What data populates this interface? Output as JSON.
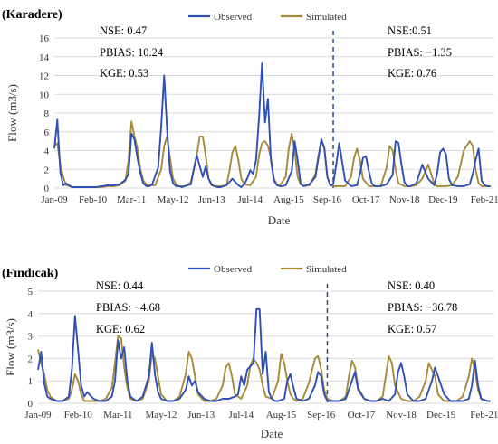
{
  "colors": {
    "observed": "#2e4fb3",
    "simulated": "#a68a3a",
    "grid": "#d9d9d9",
    "divider": "#2b4a8a"
  },
  "chart_data": [
    {
      "type": "line",
      "title": "(Karadere)",
      "xlabel": "Date",
      "ylabel": "Flow (m3/s)",
      "ylim": [
        0,
        16
      ],
      "yticks": [
        0,
        2,
        4,
        6,
        8,
        10,
        12,
        14,
        16
      ],
      "xlim": [
        0,
        148
      ],
      "xtick_labels": [
        "Jan-09",
        "Feb-10",
        "Mar-11",
        "May-12",
        "Jun-13",
        "Jul-14",
        "Aug-15",
        "Sep-16",
        "Oct-17",
        "Nov-18",
        "Dec-19",
        "Feb-21"
      ],
      "xtick_pos": [
        0,
        13,
        26,
        40,
        53,
        66,
        79,
        92,
        105,
        118,
        131,
        145
      ],
      "grid": true,
      "legend": "top",
      "calibration_end_x": 94,
      "stats_left": [
        "NSE: 0.47",
        "PBIAS: 10.24",
        "KGE: 0.53"
      ],
      "stats_right": [
        "NSE:0.51",
        "PBIAS: −1.35",
        "KGE: 0.76"
      ],
      "series": [
        {
          "name": "Observed",
          "color": "#2e4fb3",
          "x": [
            0,
            1,
            2,
            3,
            4,
            6,
            8,
            14,
            16,
            18,
            20,
            22,
            24,
            25,
            26,
            27,
            28,
            29,
            30,
            31,
            32,
            33,
            35,
            36,
            37,
            38,
            39,
            40,
            41,
            42,
            43,
            44,
            46,
            48,
            50,
            51,
            52,
            53,
            54,
            55,
            56,
            58,
            60,
            62,
            63,
            64,
            65,
            66,
            67,
            68,
            69,
            70,
            71,
            72,
            73,
            74,
            75,
            76,
            77,
            78,
            80,
            81,
            82,
            83,
            84,
            86,
            88,
            90,
            91,
            92,
            93,
            94,
            95,
            96,
            98,
            100,
            102,
            103,
            104,
            105,
            106,
            107,
            108,
            110,
            112,
            114,
            115,
            116,
            117,
            118,
            119,
            120,
            122,
            124,
            126,
            128,
            129,
            130,
            131,
            132,
            133,
            134,
            136,
            138,
            140,
            141,
            142,
            143,
            144,
            145,
            146,
            147
          ],
          "y": [
            4.2,
            7.3,
            1.7,
            0.3,
            0.5,
            0.1,
            0.1,
            0.1,
            0.2,
            0.3,
            0.3,
            0.4,
            0.9,
            1.5,
            5.8,
            5.2,
            3.2,
            1.6,
            0.5,
            0.2,
            0.2,
            0.4,
            2.2,
            6.5,
            12.0,
            6.2,
            1.8,
            0.5,
            0.2,
            0.2,
            0.1,
            0.2,
            0.4,
            3.5,
            1.2,
            2.3,
            1.0,
            0.3,
            0.2,
            0.1,
            0.1,
            0.3,
            1.0,
            0.3,
            0.1,
            0.4,
            1.0,
            1.9,
            1.5,
            3.0,
            7.5,
            13.3,
            7.0,
            9.5,
            3.0,
            0.8,
            0.3,
            0.2,
            0.2,
            0.3,
            1.8,
            5.0,
            3.0,
            0.5,
            0.2,
            0.4,
            1.2,
            5.2,
            4.3,
            1.2,
            0.3,
            0.4,
            2.5,
            4.8,
            0.8,
            0.2,
            0.3,
            1.5,
            3.2,
            3.4,
            1.8,
            0.5,
            0.2,
            0.2,
            0.4,
            1.4,
            5.0,
            4.8,
            2.5,
            0.6,
            0.2,
            0.2,
            0.5,
            2.5,
            1.0,
            0.3,
            1.5,
            3.8,
            4.2,
            3.6,
            1.0,
            0.3,
            0.2,
            0.2,
            0.4,
            1.5,
            3.0,
            4.2,
            0.8,
            0.3,
            0.2,
            0.2
          ]
        },
        {
          "name": "Simulated",
          "color": "#a68a3a",
          "x": [
            0,
            1,
            2,
            3,
            4,
            6,
            8,
            14,
            16,
            18,
            20,
            22,
            24,
            25,
            26,
            27,
            28,
            29,
            30,
            31,
            32,
            34,
            36,
            37,
            38,
            39,
            40,
            41,
            42,
            44,
            46,
            48,
            49,
            50,
            51,
            52,
            53,
            54,
            56,
            58,
            59,
            60,
            61,
            62,
            63,
            64,
            66,
            68,
            69,
            70,
            71,
            72,
            73,
            74,
            75,
            76,
            78,
            79,
            80,
            81,
            82,
            83,
            84,
            86,
            88,
            89,
            90,
            91,
            92,
            93,
            94,
            96,
            98,
            100,
            101,
            102,
            103,
            104,
            106,
            108,
            110,
            112,
            113,
            114,
            115,
            116,
            118,
            120,
            122,
            124,
            126,
            127,
            128,
            129,
            130,
            132,
            134,
            136,
            138,
            140,
            141,
            142,
            143,
            144,
            146,
            147
          ],
          "y": [
            4.5,
            4.8,
            2.5,
            1.2,
            0.3,
            0.1,
            0.1,
            0.1,
            0.1,
            0.2,
            0.2,
            0.3,
            0.8,
            3.0,
            7.1,
            5.5,
            4.2,
            2.0,
            0.8,
            0.4,
            0.3,
            0.3,
            2.0,
            4.5,
            5.5,
            3.2,
            1.0,
            0.4,
            0.2,
            0.2,
            0.6,
            3.5,
            5.5,
            5.5,
            3.5,
            1.0,
            0.4,
            0.2,
            0.2,
            0.3,
            1.8,
            3.8,
            4.5,
            3.0,
            1.0,
            0.4,
            0.3,
            1.2,
            3.5,
            4.8,
            5.0,
            4.5,
            3.2,
            1.0,
            0.4,
            0.3,
            1.2,
            4.2,
            5.8,
            4.0,
            1.2,
            0.4,
            0.2,
            0.3,
            1.5,
            3.5,
            5.0,
            4.2,
            1.2,
            0.3,
            0.2,
            0.2,
            0.2,
            1.2,
            3.2,
            4.2,
            3.0,
            1.0,
            0.2,
            0.2,
            0.2,
            2.2,
            4.5,
            4.0,
            2.0,
            0.5,
            0.2,
            0.2,
            0.3,
            1.0,
            2.5,
            1.5,
            0.4,
            0.2,
            0.2,
            0.2,
            0.3,
            1.2,
            4.0,
            5.0,
            4.5,
            2.0,
            0.5,
            0.2,
            0.2,
            0.2
          ]
        }
      ]
    },
    {
      "type": "line",
      "title": "(Fındıcak)",
      "xlabel": "Date",
      "ylabel": "Flow (m3/s)",
      "ylim": [
        0,
        5
      ],
      "yticks": [
        0,
        1,
        2,
        3,
        4,
        5
      ],
      "xlim": [
        0,
        148
      ],
      "xtick_labels": [
        "Jan-09",
        "Feb-10",
        "Mar-11",
        "May-12",
        "Jun-13",
        "Jul-14",
        "Aug-15",
        "Sep-16",
        "Oct-17",
        "Nov-18",
        "Dec-19",
        "Feb-21"
      ],
      "xtick_pos": [
        0,
        13,
        26,
        40,
        53,
        66,
        79,
        92,
        105,
        118,
        131,
        145
      ],
      "grid": true,
      "legend": "top",
      "calibration_end_x": 94,
      "stats_left": [
        "NSE: 0.44",
        "PBIAS: −4.68",
        "KGE: 0.62"
      ],
      "stats_right": [
        "NSE: 0.40",
        "PBIAS: −36.78",
        "KGE: 0.57"
      ],
      "series": [
        {
          "name": "Observed",
          "color": "#2e4fb3",
          "x": [
            0,
            1,
            2,
            3,
            4,
            6,
            8,
            10,
            11,
            12,
            13,
            14,
            15,
            16,
            18,
            20,
            22,
            24,
            25,
            26,
            27,
            28,
            29,
            30,
            32,
            34,
            36,
            37,
            38,
            39,
            40,
            42,
            44,
            46,
            48,
            49,
            50,
            51,
            52,
            54,
            56,
            58,
            60,
            62,
            64,
            65,
            66,
            67,
            68,
            70,
            71,
            72,
            73,
            74,
            75,
            76,
            77,
            78,
            80,
            81,
            82,
            83,
            84,
            86,
            88,
            90,
            91,
            92,
            93,
            94,
            96,
            98,
            100,
            102,
            103,
            104,
            106,
            108,
            110,
            112,
            114,
            116,
            117,
            118,
            119,
            120,
            122,
            124,
            126,
            128,
            129,
            130,
            132,
            134,
            136,
            138,
            140,
            141,
            142,
            143,
            144,
            146,
            147
          ],
          "y": [
            1.5,
            2.3,
            0.9,
            0.3,
            0.2,
            0.1,
            0.1,
            0.3,
            1.5,
            3.9,
            2.4,
            0.8,
            0.3,
            0.5,
            0.2,
            0.1,
            0.1,
            0.3,
            1.0,
            2.8,
            2.0,
            2.5,
            1.0,
            0.3,
            0.1,
            0.3,
            1.2,
            2.7,
            1.3,
            0.5,
            0.2,
            0.1,
            0.1,
            0.2,
            0.6,
            1.2,
            0.8,
            1.0,
            0.5,
            0.2,
            0.1,
            0.1,
            0.2,
            0.2,
            0.3,
            0.4,
            1.2,
            0.8,
            1.5,
            1.8,
            4.2,
            4.2,
            1.3,
            2.3,
            0.5,
            0.2,
            0.1,
            0.1,
            0.2,
            1.0,
            1.3,
            0.7,
            0.2,
            0.1,
            0.2,
            0.8,
            1.4,
            1.2,
            0.4,
            0.1,
            0.1,
            0.1,
            0.2,
            1.0,
            1.4,
            0.6,
            0.2,
            0.1,
            0.1,
            0.2,
            0.1,
            0.4,
            1.4,
            1.8,
            1.2,
            0.4,
            0.1,
            0.1,
            0.2,
            1.0,
            1.6,
            1.2,
            0.4,
            0.1,
            0.1,
            0.1,
            0.2,
            0.8,
            1.9,
            0.8,
            0.2,
            0.1,
            0.1
          ]
        },
        {
          "name": "Simulated",
          "color": "#a68a3a",
          "x": [
            0,
            1,
            2,
            3,
            4,
            6,
            8,
            10,
            11,
            12,
            13,
            14,
            15,
            16,
            18,
            20,
            22,
            24,
            25,
            26,
            27,
            28,
            29,
            30,
            32,
            34,
            36,
            37,
            38,
            39,
            40,
            42,
            44,
            46,
            48,
            49,
            50,
            51,
            52,
            54,
            56,
            58,
            60,
            61,
            62,
            63,
            64,
            66,
            68,
            69,
            70,
            71,
            72,
            73,
            74,
            76,
            78,
            79,
            80,
            81,
            82,
            83,
            84,
            86,
            88,
            90,
            91,
            92,
            93,
            94,
            96,
            98,
            100,
            101,
            102,
            103,
            104,
            106,
            108,
            110,
            112,
            113,
            114,
            115,
            116,
            118,
            120,
            122,
            124,
            126,
            127,
            128,
            129,
            130,
            132,
            134,
            136,
            138,
            140,
            141,
            142,
            143,
            144,
            146,
            147
          ],
          "y": [
            2.4,
            1.8,
            1.3,
            0.6,
            0.3,
            0.1,
            0.1,
            0.2,
            0.6,
            1.3,
            1.0,
            0.4,
            0.1,
            0.1,
            0.1,
            0.1,
            0.2,
            0.7,
            1.8,
            3.0,
            2.9,
            1.6,
            0.7,
            0.2,
            0.1,
            0.2,
            1.0,
            2.2,
            2.0,
            1.2,
            0.4,
            0.1,
            0.1,
            0.3,
            1.3,
            2.3,
            2.0,
            1.2,
            0.4,
            0.1,
            0.1,
            0.2,
            0.8,
            1.6,
            1.8,
            1.2,
            0.4,
            0.2,
            0.8,
            1.7,
            2.0,
            1.8,
            1.5,
            0.8,
            0.3,
            0.2,
            1.0,
            2.2,
            1.8,
            1.0,
            0.4,
            0.2,
            0.1,
            0.2,
            0.9,
            2.0,
            2.1,
            1.5,
            0.6,
            0.2,
            0.1,
            0.1,
            0.3,
            1.2,
            1.9,
            1.6,
            0.7,
            0.2,
            0.1,
            0.1,
            0.3,
            1.2,
            2.1,
            1.8,
            0.8,
            0.2,
            0.1,
            0.1,
            0.3,
            1.0,
            1.8,
            1.5,
            1.2,
            0.4,
            0.1,
            0.1,
            0.1,
            0.3,
            1.2,
            2.0,
            1.5,
            0.6,
            0.2,
            0.1,
            0.1
          ]
        }
      ]
    }
  ]
}
